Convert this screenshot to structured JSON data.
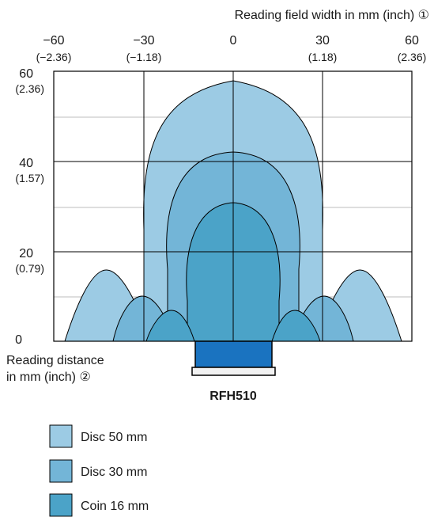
{
  "top_axis": {
    "title": "Reading field width in mm (inch) ①",
    "ticks": [
      {
        "mm": "−60",
        "inch": "(−2.36)"
      },
      {
        "mm": "−30",
        "inch": "(−1.18)"
      },
      {
        "mm": "0",
        "inch": ""
      },
      {
        "mm": "30",
        "inch": "(1.18)"
      },
      {
        "mm": "60",
        "inch": "(2.36)"
      }
    ]
  },
  "left_axis": {
    "ticks": [
      {
        "mm": "60",
        "inch": "(2.36)"
      },
      {
        "mm": "40",
        "inch": "(1.57)"
      },
      {
        "mm": "20",
        "inch": "(0.79)"
      },
      {
        "mm": "0",
        "inch": ""
      }
    ],
    "title_line1": "Reading distance",
    "title_line2": "in mm (inch) ②"
  },
  "device": {
    "name": "RFH510"
  },
  "legend": [
    {
      "label": "Disc 50 mm",
      "color": "#9ccbe4"
    },
    {
      "label": "Disc 30 mm",
      "color": "#73b5d7"
    },
    {
      "label": "Coin 16 mm",
      "color": "#4ba3c8"
    }
  ],
  "colors": {
    "grid": "#000000",
    "device_body": "#1a73c0",
    "device_base": "#f2f2f2"
  }
}
